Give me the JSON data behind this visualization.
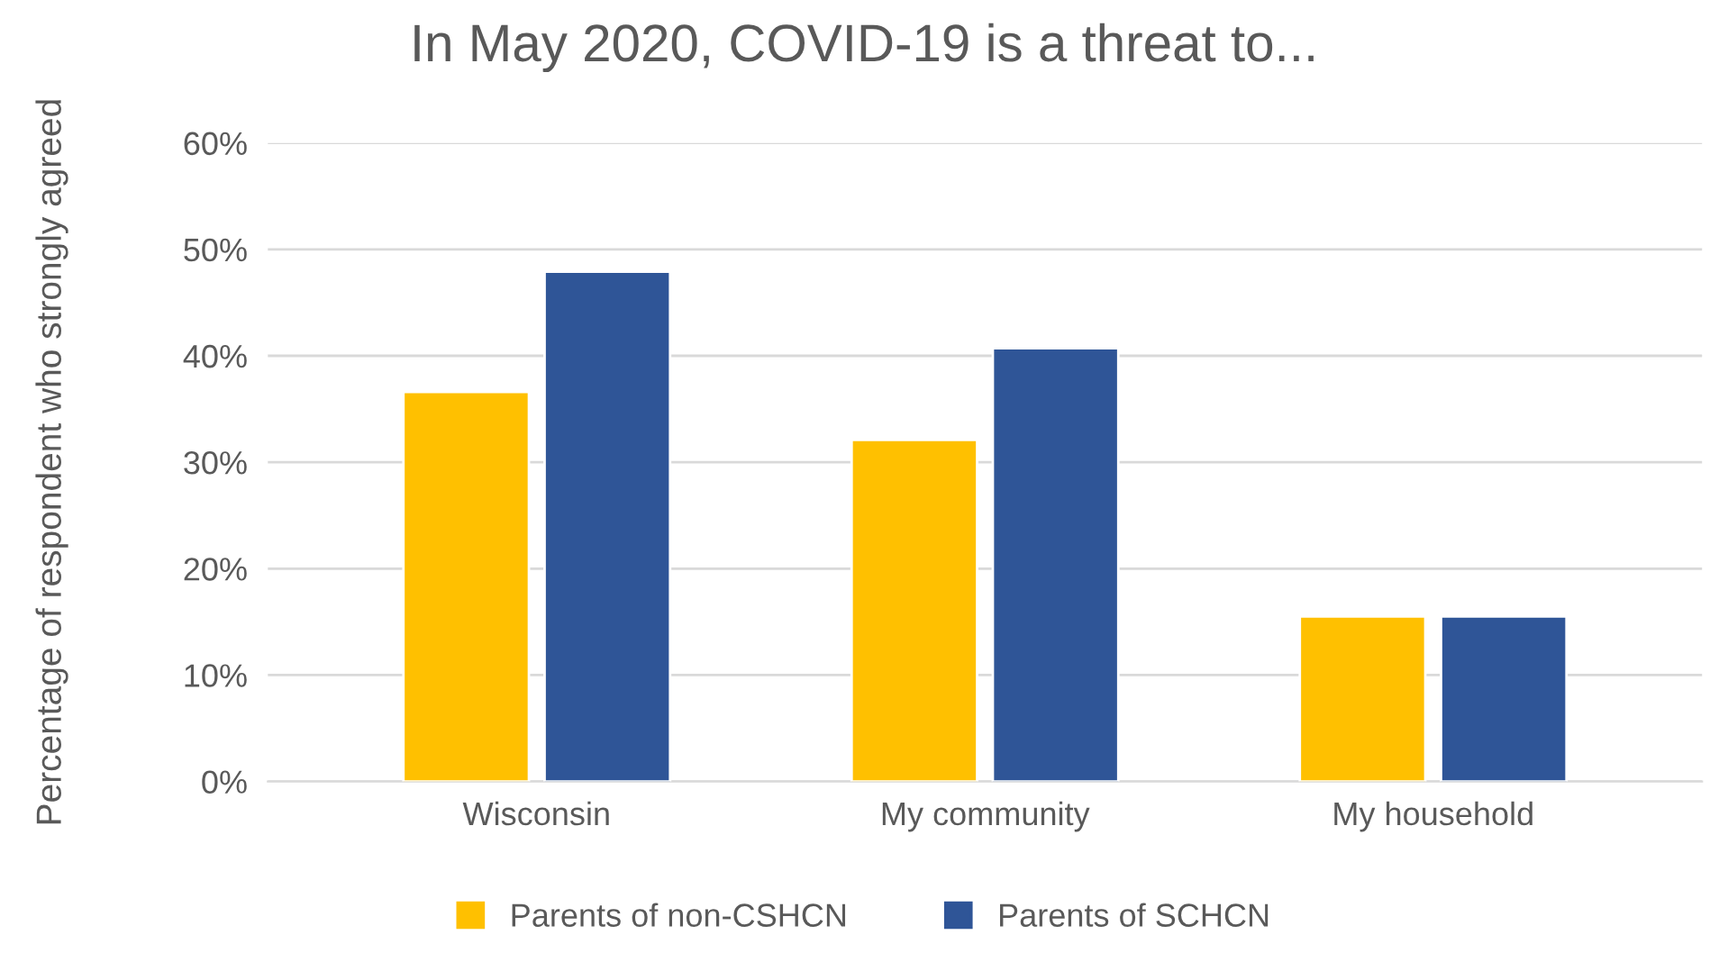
{
  "chart_data": {
    "type": "bar",
    "title": "In May 2020, COVID-19 is a threat to...",
    "ylabel": "Percentage of respondent who strongly agreed",
    "categories": [
      "Wisconsin",
      "My community",
      "My household"
    ],
    "series": [
      {
        "name": "Parents of non-CSHCN",
        "color": "#ffc000",
        "values": [
          36.6,
          32.1,
          15.5
        ]
      },
      {
        "name": "Parents of SCHCN",
        "color": "#2f5597",
        "values": [
          47.9,
          40.7,
          15.5
        ]
      }
    ],
    "ylim": [
      0,
      60
    ],
    "yticks": [
      {
        "value": 0,
        "label": "0%"
      },
      {
        "value": 10,
        "label": "10%"
      },
      {
        "value": 20,
        "label": "20%"
      },
      {
        "value": 30,
        "label": "30%"
      },
      {
        "value": 40,
        "label": "40%"
      },
      {
        "value": 50,
        "label": "50%"
      },
      {
        "value": 60,
        "label": "60%"
      }
    ],
    "grid": "y",
    "legend": "bottom"
  }
}
